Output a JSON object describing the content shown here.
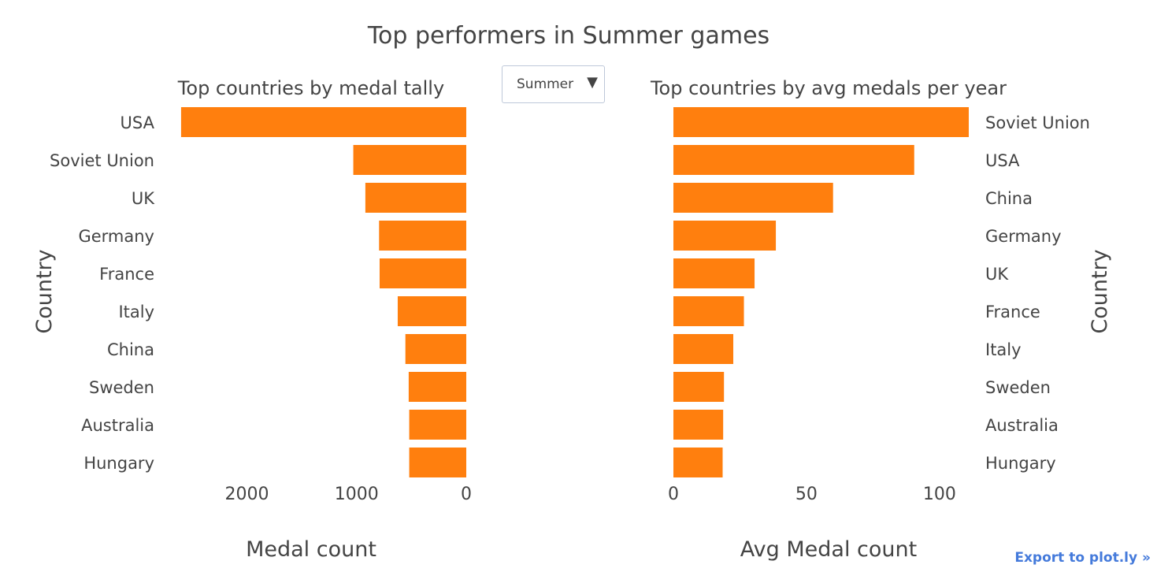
{
  "title": "Top performers in Summer games",
  "dropdown": {
    "selected": "Summer",
    "arrow_icon": "triangle-down-icon"
  },
  "export_link": "Export to plot.ly »",
  "colors": {
    "bar": "#ff7f0e",
    "text": "#444444",
    "link": "#447adb"
  },
  "chart_data": [
    {
      "type": "bar",
      "orientation": "horizontal",
      "title": "Top countries by medal tally",
      "xlabel": "Medal count",
      "ylabel": "Country",
      "x_reversed": true,
      "xlim": [
        0,
        2700
      ],
      "x_ticks": [
        2000,
        1000,
        0
      ],
      "categories": [
        "USA",
        "Soviet Union",
        "UK",
        "Germany",
        "France",
        "Italy",
        "China",
        "Sweden",
        "Australia",
        "Hungary"
      ],
      "values": [
        2600,
        1030,
        920,
        795,
        790,
        625,
        555,
        525,
        520,
        520
      ]
    },
    {
      "type": "bar",
      "orientation": "horizontal",
      "title": "Top countries by avg medals per year",
      "xlabel": "Avg Medal count",
      "ylabel": "Country",
      "x_reversed": false,
      "xlim": [
        0,
        111
      ],
      "x_ticks": [
        0,
        50,
        100
      ],
      "categories": [
        "Soviet Union",
        "USA",
        "China",
        "Germany",
        "UK",
        "France",
        "Italy",
        "Sweden",
        "Australia",
        "Hungary"
      ],
      "values": [
        111,
        90.5,
        60,
        38.5,
        30.5,
        26.5,
        22.5,
        19,
        18.7,
        18.5
      ]
    }
  ]
}
